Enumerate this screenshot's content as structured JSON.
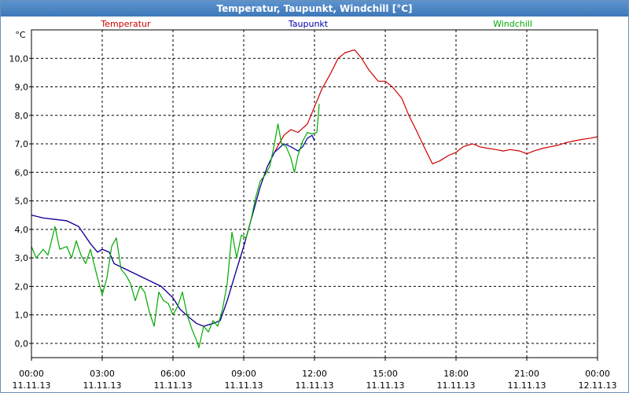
{
  "window": {
    "title": "Temperatur, Taupunkt, Windchill [°C]"
  },
  "chart_data": {
    "type": "line",
    "unit": "°C",
    "ylim": [
      -0.5,
      11.0
    ],
    "y_ticks": [
      "0,0",
      "1,0",
      "2,0",
      "3,0",
      "4,0",
      "5,0",
      "6,0",
      "7,0",
      "8,0",
      "9,0",
      "10,0"
    ],
    "x_ticks": [
      {
        "time": "00:00",
        "date": "11.11.13"
      },
      {
        "time": "03:00",
        "date": "11.11.13"
      },
      {
        "time": "06:00",
        "date": "11.11.13"
      },
      {
        "time": "09:00",
        "date": "11.11.13"
      },
      {
        "time": "12:00",
        "date": "11.11.13"
      },
      {
        "time": "15:00",
        "date": "11.11.13"
      },
      {
        "time": "18:00",
        "date": "11.11.13"
      },
      {
        "time": "21:00",
        "date": "11.11.13"
      },
      {
        "time": "00:00",
        "date": "12.11.13"
      }
    ],
    "grid": true,
    "legend_position": "top",
    "series": [
      {
        "name": "Temperatur",
        "color": "#cc0000",
        "points": [
          [
            0,
            4.5
          ],
          [
            0.5,
            4.4
          ],
          [
            1,
            4.35
          ],
          [
            1.5,
            4.3
          ],
          [
            2,
            4.1
          ],
          [
            2.5,
            3.5
          ],
          [
            2.8,
            3.2
          ],
          [
            3,
            3.3
          ],
          [
            3.3,
            3.2
          ],
          [
            3.5,
            2.8
          ],
          [
            4,
            2.6
          ],
          [
            4.5,
            2.4
          ],
          [
            5,
            2.2
          ],
          [
            5.5,
            2.0
          ],
          [
            6,
            1.6
          ],
          [
            6.3,
            1.2
          ],
          [
            6.7,
            0.9
          ],
          [
            7,
            0.7
          ],
          [
            7.3,
            0.6
          ],
          [
            7.7,
            0.7
          ],
          [
            8,
            0.8
          ],
          [
            8.3,
            1.5
          ],
          [
            8.7,
            2.6
          ],
          [
            9,
            3.4
          ],
          [
            9.3,
            4.3
          ],
          [
            9.7,
            5.5
          ],
          [
            10,
            6.2
          ],
          [
            10.3,
            6.7
          ],
          [
            10.7,
            7.3
          ],
          [
            11,
            7.5
          ],
          [
            11.3,
            7.4
          ],
          [
            11.7,
            7.7
          ],
          [
            12,
            8.3
          ],
          [
            12.3,
            8.9
          ],
          [
            12.7,
            9.5
          ],
          [
            13,
            10.0
          ],
          [
            13.3,
            10.2
          ],
          [
            13.7,
            10.3
          ],
          [
            14,
            10.0
          ],
          [
            14.3,
            9.6
          ],
          [
            14.7,
            9.2
          ],
          [
            15,
            9.2
          ],
          [
            15.3,
            9.0
          ],
          [
            15.7,
            8.6
          ],
          [
            16,
            8.0
          ],
          [
            16.3,
            7.5
          ],
          [
            16.7,
            6.8
          ],
          [
            17,
            6.3
          ],
          [
            17.3,
            6.4
          ],
          [
            17.7,
            6.6
          ],
          [
            18,
            6.7
          ],
          [
            18.3,
            6.9
          ],
          [
            18.7,
            7.0
          ],
          [
            19,
            6.9
          ],
          [
            19.3,
            6.85
          ],
          [
            19.7,
            6.8
          ],
          [
            20,
            6.75
          ],
          [
            20.3,
            6.8
          ],
          [
            20.7,
            6.75
          ],
          [
            21,
            6.65
          ],
          [
            21.3,
            6.75
          ],
          [
            21.7,
            6.85
          ],
          [
            22,
            6.9
          ],
          [
            22.3,
            6.95
          ],
          [
            22.7,
            7.05
          ],
          [
            23,
            7.1
          ],
          [
            23.3,
            7.15
          ],
          [
            23.7,
            7.2
          ],
          [
            24,
            7.25
          ]
        ]
      },
      {
        "name": "Taupunkt",
        "color": "#0000aa",
        "points": [
          [
            0,
            4.5
          ],
          [
            0.5,
            4.4
          ],
          [
            1,
            4.35
          ],
          [
            1.5,
            4.3
          ],
          [
            2,
            4.1
          ],
          [
            2.5,
            3.5
          ],
          [
            2.8,
            3.2
          ],
          [
            3,
            3.3
          ],
          [
            3.3,
            3.2
          ],
          [
            3.5,
            2.8
          ],
          [
            4,
            2.6
          ],
          [
            4.5,
            2.4
          ],
          [
            5,
            2.2
          ],
          [
            5.5,
            2.0
          ],
          [
            6,
            1.6
          ],
          [
            6.3,
            1.2
          ],
          [
            6.7,
            0.9
          ],
          [
            7,
            0.7
          ],
          [
            7.3,
            0.6
          ],
          [
            7.7,
            0.7
          ],
          [
            8,
            0.8
          ],
          [
            8.3,
            1.5
          ],
          [
            8.7,
            2.6
          ],
          [
            9,
            3.4
          ],
          [
            9.3,
            4.3
          ],
          [
            9.7,
            5.5
          ],
          [
            10,
            6.2
          ],
          [
            10.3,
            6.7
          ],
          [
            10.7,
            7.0
          ],
          [
            11,
            6.9
          ],
          [
            11.3,
            6.75
          ],
          [
            11.5,
            6.9
          ],
          [
            11.7,
            7.2
          ],
          [
            11.9,
            7.3
          ],
          [
            12,
            7.1
          ]
        ]
      },
      {
        "name": "Windchill",
        "color": "#00aa00",
        "points": [
          [
            0,
            3.4
          ],
          [
            0.2,
            3.0
          ],
          [
            0.5,
            3.3
          ],
          [
            0.7,
            3.1
          ],
          [
            1,
            4.1
          ],
          [
            1.2,
            3.3
          ],
          [
            1.5,
            3.4
          ],
          [
            1.7,
            3.0
          ],
          [
            1.9,
            3.6
          ],
          [
            2.1,
            3.1
          ],
          [
            2.3,
            2.8
          ],
          [
            2.5,
            3.3
          ],
          [
            2.8,
            2.3
          ],
          [
            3,
            1.7
          ],
          [
            3.2,
            2.3
          ],
          [
            3.4,
            3.4
          ],
          [
            3.6,
            3.7
          ],
          [
            3.8,
            2.6
          ],
          [
            4,
            2.4
          ],
          [
            4.2,
            2.1
          ],
          [
            4.4,
            1.5
          ],
          [
            4.6,
            2.0
          ],
          [
            4.8,
            1.8
          ],
          [
            5.0,
            1.1
          ],
          [
            5.2,
            0.6
          ],
          [
            5.4,
            1.8
          ],
          [
            5.6,
            1.5
          ],
          [
            5.8,
            1.4
          ],
          [
            6,
            1.0
          ],
          [
            6.2,
            1.3
          ],
          [
            6.4,
            1.8
          ],
          [
            6.6,
            1.0
          ],
          [
            6.8,
            0.5
          ],
          [
            7,
            0.1
          ],
          [
            7.1,
            -0.15
          ],
          [
            7.3,
            0.6
          ],
          [
            7.5,
            0.4
          ],
          [
            7.7,
            0.8
          ],
          [
            7.9,
            0.6
          ],
          [
            8.1,
            1.2
          ],
          [
            8.3,
            2.1
          ],
          [
            8.5,
            3.9
          ],
          [
            8.7,
            3.0
          ],
          [
            8.9,
            3.8
          ],
          [
            9.1,
            3.7
          ],
          [
            9.3,
            4.3
          ],
          [
            9.5,
            5.1
          ],
          [
            9.7,
            5.7
          ],
          [
            9.9,
            5.9
          ],
          [
            10.1,
            6.2
          ],
          [
            10.3,
            7.0
          ],
          [
            10.45,
            7.7
          ],
          [
            10.6,
            7.0
          ],
          [
            10.8,
            6.9
          ],
          [
            11,
            6.5
          ],
          [
            11.15,
            6.0
          ],
          [
            11.3,
            6.6
          ],
          [
            11.5,
            7.1
          ],
          [
            11.7,
            7.4
          ],
          [
            11.9,
            7.35
          ],
          [
            12.1,
            7.4
          ],
          [
            12.2,
            8.4
          ]
        ]
      }
    ]
  }
}
